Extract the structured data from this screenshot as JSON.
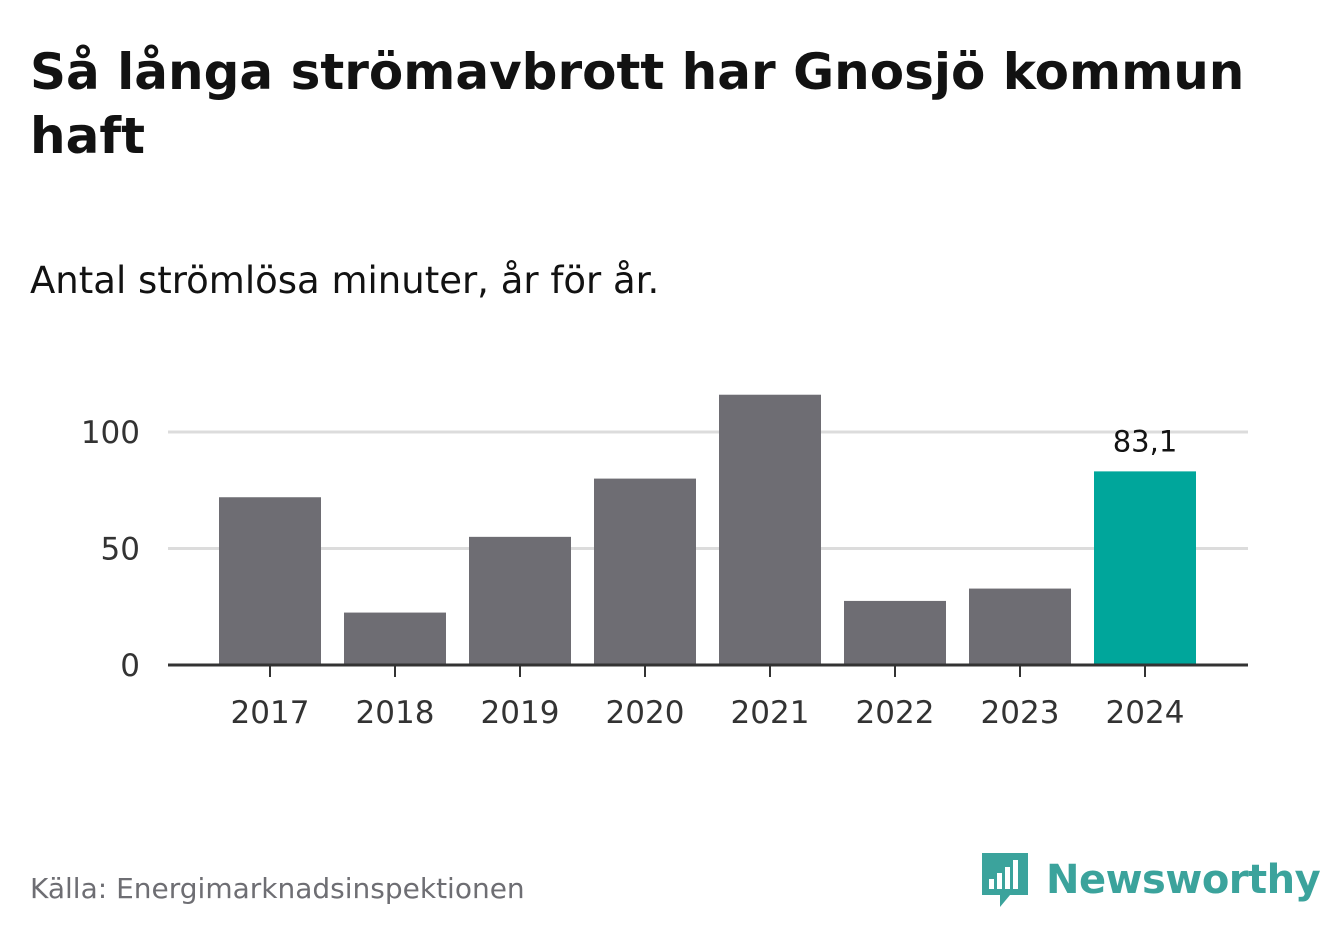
{
  "header": {
    "title": "Så långa strömavbrott har Gnosjö kommun haft",
    "subtitle": "Antal strömlösa minuter, år för år."
  },
  "footer": {
    "source": "Källa: Energimarknadsinspektionen",
    "brand": "Newsworthy"
  },
  "colors": {
    "bar": "#6e6d73",
    "highlight": "#00a69b",
    "grid": "#dcdcdc",
    "axis": "#333333",
    "brand": "#3ba39c"
  },
  "chart_data": {
    "type": "bar",
    "categories": [
      "2017",
      "2018",
      "2019",
      "2020",
      "2021",
      "2022",
      "2023",
      "2024"
    ],
    "values": [
      72,
      22.5,
      55,
      80,
      116,
      27.5,
      32.8,
      83.1
    ],
    "highlight_index": 7,
    "data_labels": [
      {
        "index": 7,
        "text": "83,1"
      }
    ],
    "y_ticks": [
      "0",
      "50",
      "100"
    ],
    "y_tick_values": [
      0,
      50,
      100
    ],
    "ylim": [
      0,
      120
    ],
    "grid": true,
    "xlabel": "",
    "ylabel": ""
  }
}
